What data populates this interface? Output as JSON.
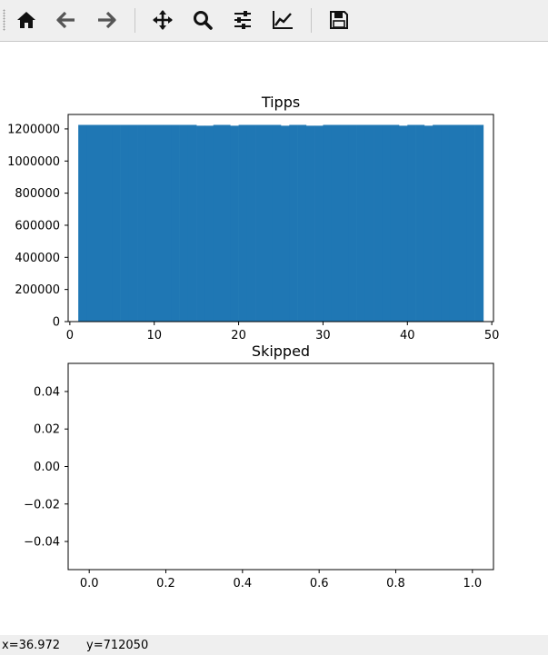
{
  "toolbar": {
    "buttons": [
      {
        "name": "home-button",
        "icon": "home-icon"
      },
      {
        "name": "back-button",
        "icon": "arrow-left-icon"
      },
      {
        "name": "forward-button",
        "icon": "arrow-right-icon"
      },
      {
        "name": "pan-button",
        "icon": "move-arrows-icon"
      },
      {
        "name": "zoom-button",
        "icon": "magnifier-icon"
      },
      {
        "name": "configure-subplots-button",
        "icon": "sliders-icon"
      },
      {
        "name": "edit-axis-button",
        "icon": "line-chart-icon"
      },
      {
        "name": "save-button",
        "icon": "floppy-disk-icon"
      }
    ]
  },
  "status": {
    "x_readout": "x=36.972",
    "y_readout": "y=712050"
  },
  "colors": {
    "bar": "#1f77b4",
    "toolbar_bg": "#efefef"
  },
  "chart_data": [
    {
      "type": "bar",
      "title": "Tipps",
      "xlabel": "",
      "ylabel": "",
      "x": [
        1,
        2,
        3,
        4,
        5,
        6,
        7,
        8,
        9,
        10,
        11,
        12,
        13,
        14,
        15,
        16,
        17,
        18,
        19,
        20,
        21,
        22,
        23,
        24,
        25,
        26,
        27,
        28,
        29,
        30,
        31,
        32,
        33,
        34,
        35,
        36,
        37,
        38,
        39,
        40,
        41,
        42,
        43,
        44,
        45,
        46,
        47,
        48
      ],
      "values": [
        1225000,
        1225000,
        1225000,
        1225000,
        1225000,
        1225000,
        1225000,
        1225000,
        1225000,
        1225000,
        1225000,
        1225000,
        1225000,
        1225000,
        1220000,
        1220000,
        1225000,
        1225000,
        1220000,
        1225000,
        1225000,
        1225000,
        1225000,
        1225000,
        1220000,
        1225000,
        1225000,
        1220000,
        1220000,
        1225000,
        1225000,
        1225000,
        1225000,
        1225000,
        1225000,
        1225000,
        1225000,
        1225000,
        1220000,
        1225000,
        1225000,
        1220000,
        1225000,
        1225000,
        1225000,
        1225000,
        1225000,
        1225000
      ],
      "bar_width": 1,
      "xlim": [
        -0.2,
        50.2
      ],
      "ylim": [
        0,
        1290000
      ],
      "xticks": [
        0,
        10,
        20,
        30,
        40,
        50
      ],
      "xtick_labels": [
        "0",
        "10",
        "20",
        "30",
        "40",
        "50"
      ],
      "yticks": [
        0,
        200000,
        400000,
        600000,
        800000,
        1000000,
        1200000
      ],
      "ytick_labels": [
        "0",
        "200000",
        "400000",
        "600000",
        "800000",
        "1000000",
        "1200000"
      ],
      "grid": false
    },
    {
      "type": "bar",
      "title": "Skipped",
      "xlabel": "",
      "ylabel": "",
      "x": [],
      "values": [],
      "xlim": [
        -0.055,
        1.055
      ],
      "ylim": [
        -0.055,
        0.055
      ],
      "xticks": [
        0,
        0.2,
        0.4,
        0.6,
        0.8,
        1.0
      ],
      "xtick_labels": [
        "0.0",
        "0.2",
        "0.4",
        "0.6",
        "0.8",
        "1.0"
      ],
      "yticks": [
        -0.04,
        -0.02,
        0,
        0.02,
        0.04
      ],
      "ytick_labels": [
        "−0.04",
        "−0.02",
        "0.00",
        "0.02",
        "0.04"
      ],
      "grid": false
    }
  ]
}
